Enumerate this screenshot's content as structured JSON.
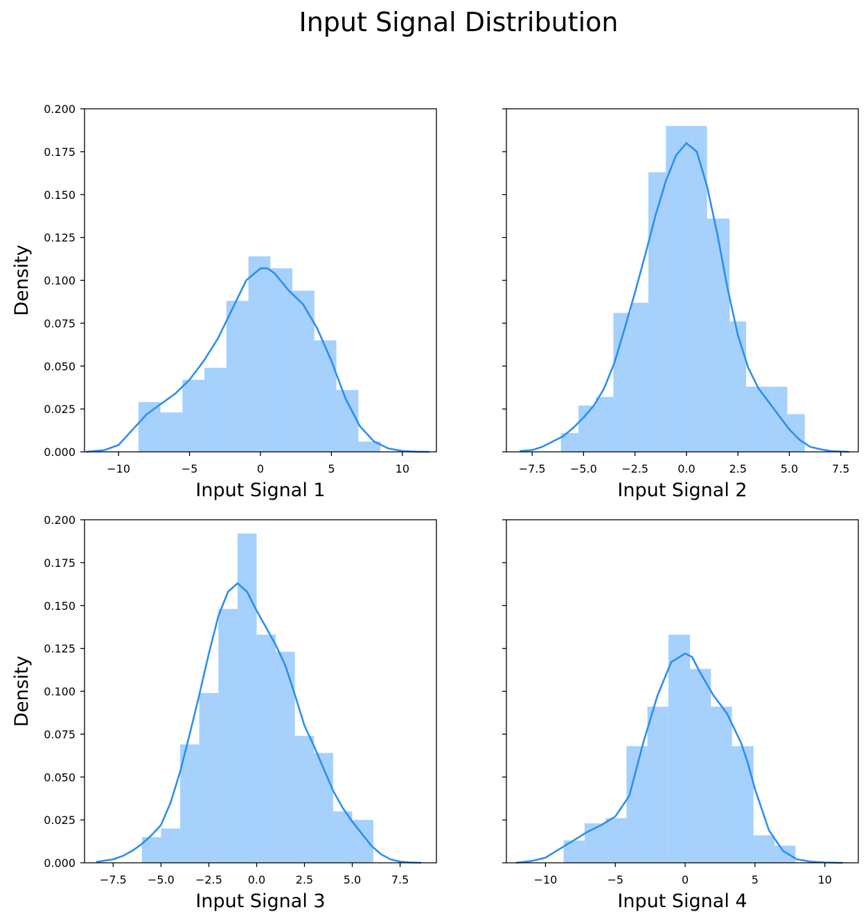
{
  "figure": {
    "title": "Input Signal Distribution"
  },
  "colors": {
    "bar": "#a5d1fc",
    "kde": "#2b8ef0"
  },
  "chart_data": [
    {
      "type": "histogram",
      "xlabel": "Input Signal 1",
      "ylabel": "Density",
      "xlim": [
        -12.4,
        12.4
      ],
      "ylim": [
        0,
        0.2
      ],
      "xticks": [
        -10,
        -5,
        0,
        5,
        10
      ],
      "xtick_labels": [
        "−10",
        "−5",
        "0",
        "5",
        "10"
      ],
      "yticks": [
        0,
        0.025,
        0.05,
        0.075,
        0.1,
        0.125,
        0.15,
        0.175,
        0.2
      ],
      "ytick_labels": [
        "0.000",
        "0.025",
        "0.050",
        "0.075",
        "0.100",
        "0.125",
        "0.150",
        "0.175",
        "0.200"
      ],
      "bin_edges": [
        -8.6,
        -7.05,
        -5.5,
        -3.95,
        -2.4,
        -0.85,
        0.7,
        2.25,
        3.8,
        5.35,
        6.9,
        8.45
      ],
      "densities": [
        0.029,
        0.023,
        0.042,
        0.049,
        0.088,
        0.114,
        0.107,
        0.094,
        0.065,
        0.036,
        0.006
      ],
      "kde_x": [
        -12.3,
        -11,
        -10,
        -9,
        -8,
        -7,
        -6,
        -5,
        -4,
        -3,
        -2,
        -1,
        0,
        0.5,
        1,
        2,
        3,
        4,
        5,
        6,
        7,
        8,
        9,
        10,
        11,
        11.9
      ],
      "kde_y": [
        0.0,
        0.001,
        0.004,
        0.013,
        0.022,
        0.028,
        0.034,
        0.042,
        0.053,
        0.066,
        0.083,
        0.1,
        0.107,
        0.107,
        0.104,
        0.094,
        0.086,
        0.072,
        0.053,
        0.031,
        0.015,
        0.006,
        0.002,
        0.0005,
        0.0001,
        0.0
      ],
      "show_ylabels": true
    },
    {
      "type": "histogram",
      "xlabel": "Input Signal 2",
      "ylabel": "",
      "xlim": [
        -8.75,
        8.35
      ],
      "ylim": [
        0,
        0.2
      ],
      "xticks": [
        -7.5,
        -5,
        -2.5,
        0,
        2.5,
        5,
        7.5
      ],
      "xtick_labels": [
        "−7.5",
        "−5.0",
        "−2.5",
        "0.0",
        "2.5",
        "5.0",
        "7.5"
      ],
      "yticks": [
        0,
        0.025,
        0.05,
        0.075,
        0.1,
        0.125,
        0.15,
        0.175,
        0.2
      ],
      "ytick_labels": [
        "",
        "",
        "",
        "",
        "",
        "",
        "",
        "",
        ""
      ],
      "bin_edges": [
        -6.1,
        -5.25,
        -4.4,
        -3.55,
        -2.7,
        -1.85,
        -1.0,
        0.2,
        1.0,
        2.1,
        2.9,
        4.2,
        4.9,
        5.75
      ],
      "densities": [
        0.011,
        0.027,
        0.032,
        0.081,
        0.087,
        0.163,
        0.19,
        0.19,
        0.136,
        0.076,
        0.038,
        0.038,
        0.022
      ],
      "kde_x": [
        -8.1,
        -7.5,
        -7,
        -6.5,
        -6,
        -5.5,
        -5,
        -4.5,
        -4,
        -3.5,
        -3,
        -2.5,
        -2,
        -1.5,
        -1,
        -0.5,
        0,
        0.5,
        1,
        1.5,
        2,
        2.5,
        3,
        3.5,
        4,
        4.5,
        5,
        5.5,
        6,
        6.5,
        7,
        7.5,
        7.9
      ],
      "kde_y": [
        0.0005,
        0.001,
        0.003,
        0.006,
        0.009,
        0.014,
        0.02,
        0.027,
        0.037,
        0.052,
        0.072,
        0.093,
        0.115,
        0.138,
        0.158,
        0.173,
        0.18,
        0.175,
        0.155,
        0.127,
        0.095,
        0.068,
        0.049,
        0.037,
        0.029,
        0.021,
        0.013,
        0.007,
        0.003,
        0.0015,
        0.0005,
        0.0002,
        0.0
      ],
      "show_ylabels": false
    },
    {
      "type": "histogram",
      "xlabel": "Input Signal 3",
      "ylabel": "Density",
      "xlim": [
        -9.0,
        9.4
      ],
      "ylim": [
        0,
        0.2
      ],
      "xticks": [
        -7.5,
        -5,
        -2.5,
        0,
        2.5,
        5,
        7.5
      ],
      "xtick_labels": [
        "−7.5",
        "−5.0",
        "−2.5",
        "0.0",
        "2.5",
        "5.0",
        "7.5"
      ],
      "yticks": [
        0,
        0.025,
        0.05,
        0.075,
        0.1,
        0.125,
        0.15,
        0.175,
        0.2
      ],
      "ytick_labels": [
        "0.000",
        "0.025",
        "0.050",
        "0.075",
        "0.100",
        "0.125",
        "0.150",
        "0.175",
        "0.200"
      ],
      "bin_edges": [
        -6.0,
        -5.0,
        -4.0,
        -3.0,
        -2.0,
        -1.0,
        0.0,
        1.0,
        2.0,
        3.0,
        4.0,
        5.0,
        6.1
      ],
      "densities": [
        0.015,
        0.02,
        0.069,
        0.099,
        0.148,
        0.192,
        0.133,
        0.123,
        0.074,
        0.064,
        0.03,
        0.025
      ],
      "kde_x": [
        -8.4,
        -7.5,
        -7,
        -6.5,
        -6,
        -5.5,
        -5,
        -4.5,
        -4,
        -3.5,
        -3,
        -2.5,
        -2,
        -1.5,
        -1,
        -0.5,
        0,
        0.5,
        1,
        1.5,
        2,
        2.5,
        3,
        3.5,
        4,
        4.5,
        5,
        5.5,
        6,
        6.5,
        7,
        7.5,
        8,
        8.6
      ],
      "kde_y": [
        0.0005,
        0.002,
        0.004,
        0.007,
        0.011,
        0.016,
        0.022,
        0.035,
        0.053,
        0.075,
        0.098,
        0.122,
        0.144,
        0.158,
        0.163,
        0.158,
        0.147,
        0.137,
        0.127,
        0.115,
        0.098,
        0.08,
        0.068,
        0.055,
        0.042,
        0.032,
        0.024,
        0.017,
        0.01,
        0.005,
        0.002,
        0.0007,
        0.0002,
        0.0
      ],
      "show_ylabels": true
    },
    {
      "type": "histogram",
      "xlabel": "Input Signal 4",
      "ylabel": "",
      "xlim": [
        -12.8,
        12.4
      ],
      "ylim": [
        0,
        0.2
      ],
      "xticks": [
        -10,
        -5,
        0,
        5,
        10
      ],
      "xtick_labels": [
        "−10",
        "−5",
        "0",
        "5",
        "10"
      ],
      "yticks": [
        0,
        0.025,
        0.05,
        0.075,
        0.1,
        0.125,
        0.15,
        0.175,
        0.2
      ],
      "ytick_labels": [
        "",
        "",
        "",
        "",
        "",
        "",
        "",
        "",
        ""
      ],
      "bin_edges": [
        -8.7,
        -7.2,
        -5.7,
        -4.2,
        -2.7,
        -1.2,
        0.35,
        1.85,
        3.35,
        4.9,
        6.4,
        7.9
      ],
      "densities": [
        0.013,
        0.023,
        0.026,
        0.068,
        0.091,
        0.133,
        0.113,
        0.091,
        0.068,
        0.016,
        0.01
      ],
      "kde_x": [
        -12.1,
        -11,
        -10,
        -9,
        -8,
        -7,
        -6,
        -5,
        -4,
        -3,
        -2,
        -1,
        0,
        0.5,
        1,
        2,
        3,
        4,
        4.5,
        5,
        6,
        7,
        8,
        9,
        10,
        11,
        11.3
      ],
      "kde_y": [
        0.0,
        0.001,
        0.003,
        0.008,
        0.013,
        0.018,
        0.022,
        0.027,
        0.039,
        0.07,
        0.097,
        0.117,
        0.122,
        0.12,
        0.112,
        0.098,
        0.087,
        0.07,
        0.058,
        0.043,
        0.019,
        0.007,
        0.002,
        0.0007,
        0.0002,
        0.0,
        0.0
      ],
      "show_ylabels": false
    }
  ]
}
